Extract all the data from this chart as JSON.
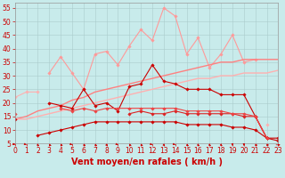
{
  "x": [
    0,
    1,
    2,
    3,
    4,
    5,
    6,
    7,
    8,
    9,
    10,
    11,
    12,
    13,
    14,
    15,
    16,
    17,
    18,
    19,
    20,
    21,
    22,
    23
  ],
  "lines": [
    {
      "name": "light_pink_upper",
      "color": "#FF9999",
      "linewidth": 0.8,
      "marker": "D",
      "markersize": 1.8,
      "values": [
        null,
        null,
        null,
        31,
        37,
        31,
        25,
        38,
        39,
        34,
        41,
        47,
        43,
        55,
        52,
        38,
        44,
        33,
        38,
        45,
        35,
        36,
        null,
        null
      ]
    },
    {
      "name": "light_pink_mid",
      "color": "#FFB0B0",
      "linewidth": 0.8,
      "marker": "D",
      "markersize": 1.8,
      "values": [
        22,
        24,
        24,
        null,
        null,
        null,
        null,
        null,
        null,
        null,
        null,
        null,
        null,
        null,
        null,
        null,
        null,
        null,
        null,
        null,
        null,
        null,
        12,
        null
      ]
    },
    {
      "name": "pink_diagonal_upper",
      "color": "#FF8080",
      "linewidth": 1.0,
      "marker": null,
      "markersize": 0,
      "values": [
        14,
        15,
        17,
        18,
        19,
        21,
        22,
        24,
        25,
        26,
        27,
        28,
        29,
        30,
        31,
        32,
        33,
        34,
        35,
        35,
        36,
        36,
        36,
        36
      ]
    },
    {
      "name": "pink_diagonal_lower",
      "color": "#FFB0B0",
      "linewidth": 1.0,
      "marker": null,
      "markersize": 0,
      "values": [
        14,
        14,
        15,
        16,
        17,
        18,
        19,
        20,
        21,
        22,
        23,
        24,
        25,
        26,
        27,
        28,
        29,
        29,
        30,
        30,
        31,
        31,
        31,
        32
      ]
    },
    {
      "name": "dark_red_spiky",
      "color": "#CC0000",
      "linewidth": 0.8,
      "marker": "D",
      "markersize": 1.8,
      "values": [
        null,
        null,
        null,
        20,
        19,
        18,
        25,
        19,
        20,
        17,
        26,
        27,
        34,
        28,
        27,
        25,
        25,
        25,
        23,
        23,
        23,
        15,
        7,
        7
      ]
    },
    {
      "name": "dark_red_lower",
      "color": "#DD2222",
      "linewidth": 0.8,
      "marker": "D",
      "markersize": 1.8,
      "values": [
        null,
        null,
        null,
        null,
        null,
        null,
        null,
        null,
        null,
        null,
        16,
        17,
        16,
        16,
        17,
        16,
        16,
        16,
        16,
        16,
        15,
        15,
        7,
        null
      ]
    },
    {
      "name": "dark_red_curve",
      "color": "#CC0000",
      "linewidth": 0.8,
      "marker": "D",
      "markersize": 1.8,
      "values": [
        14,
        null,
        8,
        9,
        10,
        11,
        12,
        13,
        13,
        13,
        13,
        13,
        13,
        13,
        13,
        12,
        12,
        12,
        12,
        11,
        11,
        10,
        7,
        6
      ]
    },
    {
      "name": "medium_red_curve",
      "color": "#EE4444",
      "linewidth": 0.8,
      "marker": "D",
      "markersize": 1.8,
      "values": [
        16,
        null,
        null,
        null,
        18,
        17,
        18,
        17,
        18,
        18,
        18,
        18,
        18,
        18,
        18,
        17,
        17,
        17,
        17,
        16,
        16,
        15,
        7,
        null
      ]
    }
  ],
  "xlabel": "Vent moyen/en rafales ( km/h )",
  "xlim": [
    0,
    23
  ],
  "ylim": [
    5,
    57
  ],
  "yticks": [
    5,
    10,
    15,
    20,
    25,
    30,
    35,
    40,
    45,
    50,
    55
  ],
  "xticks": [
    0,
    1,
    2,
    3,
    4,
    5,
    6,
    7,
    8,
    9,
    10,
    11,
    12,
    13,
    14,
    15,
    16,
    17,
    18,
    19,
    20,
    21,
    22,
    23
  ],
  "background_color": "#C8EBEB",
  "grid_color": "#AACCCC",
  "xlabel_fontsize": 7,
  "tick_fontsize": 5.5
}
